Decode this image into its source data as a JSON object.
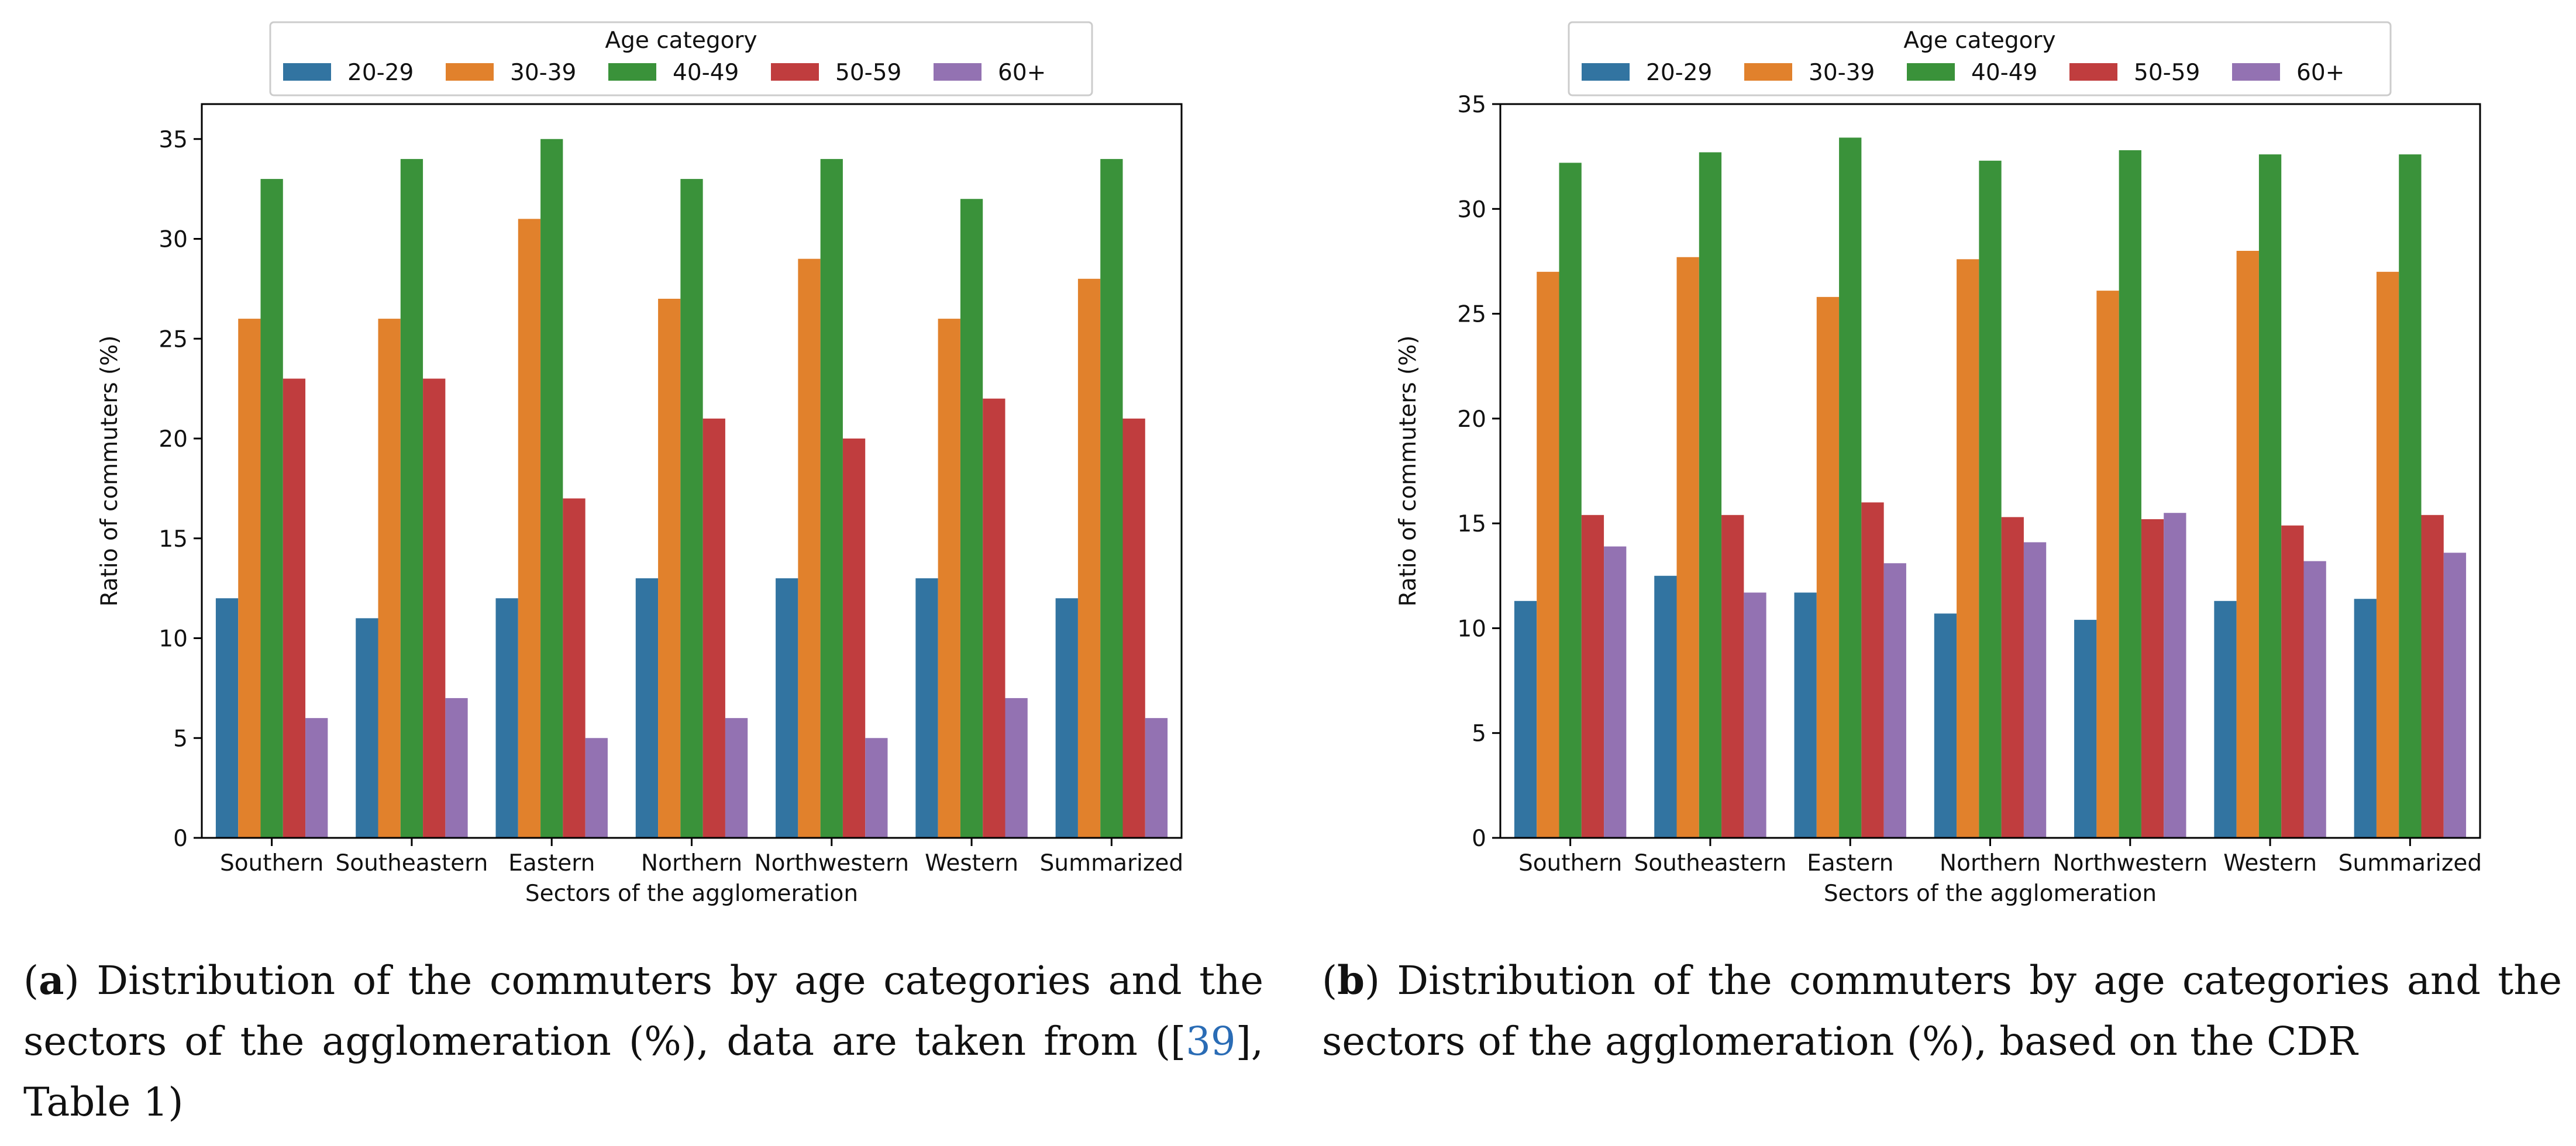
{
  "chart_data": [
    {
      "type": "bar",
      "panel": "a",
      "legend_title": "Age category",
      "legend_position": "top-center",
      "xlabel": "Sectors of the agglomeration",
      "ylabel": "Ratio of commuters (%)",
      "ylim": [
        0,
        36.75
      ],
      "yticks": [
        0,
        5,
        10,
        15,
        20,
        25,
        30,
        35
      ],
      "grid": false,
      "categories": [
        "Southern",
        "Southeastern",
        "Eastern",
        "Northern",
        "Northwestern",
        "Western",
        "Summarized"
      ],
      "series": [
        {
          "name": "20-29",
          "color": "#3274a1",
          "values": [
            12,
            11,
            12,
            13,
            13,
            13,
            12
          ]
        },
        {
          "name": "30-39",
          "color": "#e1812c",
          "values": [
            26,
            26,
            31,
            27,
            29,
            26,
            28
          ]
        },
        {
          "name": "40-49",
          "color": "#3a923a",
          "values": [
            33,
            34,
            35,
            33,
            34,
            32,
            34
          ]
        },
        {
          "name": "50-59",
          "color": "#c03d3e",
          "values": [
            23,
            23,
            17,
            21,
            20,
            22,
            21
          ]
        },
        {
          "name": "60+",
          "color": "#9372b2",
          "values": [
            6,
            7,
            5,
            6,
            5,
            7,
            6
          ]
        }
      ]
    },
    {
      "type": "bar",
      "panel": "b",
      "legend_title": "Age category",
      "legend_position": "top-center",
      "xlabel": "Sectors of the agglomeration",
      "ylabel": "Ratio of commuters (%)",
      "ylim": [
        0,
        35
      ],
      "yticks": [
        0,
        5,
        10,
        15,
        20,
        25,
        30,
        35
      ],
      "grid": false,
      "categories": [
        "Southern",
        "Southeastern",
        "Eastern",
        "Northern",
        "Northwestern",
        "Western",
        "Summarized"
      ],
      "series": [
        {
          "name": "20-29",
          "color": "#3274a1",
          "values": [
            11.3,
            12.5,
            11.7,
            10.7,
            10.4,
            11.3,
            11.4
          ]
        },
        {
          "name": "30-39",
          "color": "#e1812c",
          "values": [
            27.0,
            27.7,
            25.8,
            27.6,
            26.1,
            28.0,
            27.0
          ]
        },
        {
          "name": "40-49",
          "color": "#3a923a",
          "values": [
            32.2,
            32.7,
            33.4,
            32.3,
            32.8,
            32.6,
            32.6
          ]
        },
        {
          "name": "50-59",
          "color": "#c03d3e",
          "values": [
            15.4,
            15.4,
            16.0,
            15.3,
            15.2,
            14.9,
            15.4
          ]
        },
        {
          "name": "60+",
          "color": "#9372b2",
          "values": [
            13.9,
            11.7,
            13.1,
            14.1,
            15.5,
            13.2,
            13.6
          ]
        }
      ]
    }
  ],
  "captions": {
    "a": {
      "letter": "a",
      "text_1": " Distribution of the commuters by age categories and the sectors of the agglomeration (%), data are taken from ([",
      "cite": "39",
      "text_2": "], Table 1)"
    },
    "b": {
      "letter": "b",
      "text_1": " Distribution of the commuters by age categories and the sectors of the agglomeration (%), based on the CDR"
    }
  }
}
